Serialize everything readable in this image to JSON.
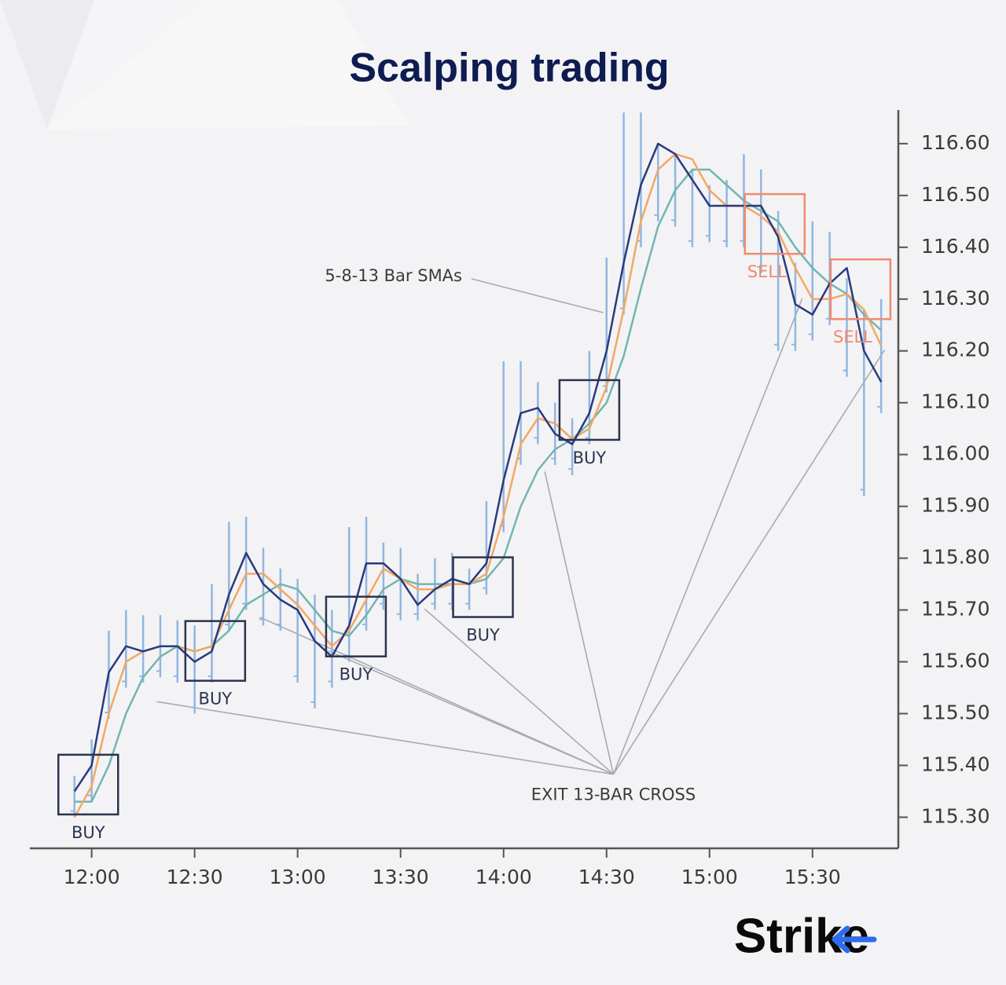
{
  "chart_data": {
    "type": "line",
    "title": "Scalping trading",
    "logo": "Strike",
    "x": [
      "11:55",
      "12:00",
      "12:05",
      "12:10",
      "12:15",
      "12:20",
      "12:25",
      "12:30",
      "12:35",
      "12:40",
      "12:45",
      "12:50",
      "12:55",
      "13:00",
      "13:05",
      "13:10",
      "13:15",
      "13:20",
      "13:25",
      "13:30",
      "13:35",
      "13:40",
      "13:45",
      "13:50",
      "13:55",
      "14:00",
      "14:05",
      "14:10",
      "14:15",
      "14:20",
      "14:25",
      "14:30",
      "14:35",
      "14:40",
      "14:45",
      "14:50",
      "14:55",
      "15:00",
      "15:05",
      "15:10",
      "15:15",
      "15:20",
      "15:25",
      "15:30",
      "15:35",
      "15:40",
      "15:45",
      "15:50"
    ],
    "bar_color": "#92b6e0",
    "highs": [
      115.38,
      115.45,
      115.66,
      115.7,
      115.69,
      115.69,
      115.68,
      115.67,
      115.75,
      115.87,
      115.88,
      115.82,
      115.78,
      115.76,
      115.73,
      115.7,
      115.86,
      115.88,
      115.83,
      115.82,
      115.77,
      115.8,
      115.81,
      115.78,
      115.91,
      116.18,
      116.18,
      116.14,
      116.1,
      116.07,
      116.2,
      116.38,
      116.66,
      116.66,
      116.6,
      116.58,
      116.55,
      116.52,
      116.53,
      116.58,
      116.55,
      116.47,
      116.37,
      116.45,
      116.43,
      116.34,
      116.28,
      116.3
    ],
    "lows": [
      115.3,
      115.33,
      115.49,
      115.55,
      115.56,
      115.57,
      115.56,
      115.5,
      115.56,
      115.66,
      115.7,
      115.67,
      115.66,
      115.56,
      115.51,
      115.55,
      115.6,
      115.66,
      115.7,
      115.68,
      115.68,
      115.7,
      115.7,
      115.7,
      115.73,
      115.85,
      115.98,
      116.02,
      115.98,
      115.96,
      116.02,
      116.12,
      116.27,
      116.4,
      116.45,
      116.44,
      116.4,
      116.41,
      116.4,
      116.4,
      116.35,
      116.2,
      116.2,
      116.22,
      116.25,
      116.15,
      115.92,
      116.08
    ],
    "series": [
      {
        "color": "#2a3a7c",
        "values": [
          115.35,
          115.4,
          115.58,
          115.63,
          115.62,
          115.63,
          115.63,
          115.6,
          115.62,
          115.73,
          115.81,
          115.75,
          115.72,
          115.7,
          115.64,
          115.61,
          115.67,
          115.79,
          115.79,
          115.76,
          115.71,
          115.74,
          115.76,
          115.75,
          115.79,
          115.95,
          116.08,
          116.09,
          116.04,
          116.02,
          116.08,
          116.2,
          116.37,
          116.52,
          116.6,
          116.58,
          116.53,
          116.48,
          116.48,
          116.48,
          116.48,
          116.42,
          116.29,
          116.27,
          116.33,
          116.36,
          116.2,
          116.14
        ]
      },
      {
        "color": "#f4a763",
        "values": [
          115.3,
          115.36,
          115.5,
          115.6,
          115.62,
          115.63,
          115.63,
          115.62,
          115.63,
          115.7,
          115.77,
          115.77,
          115.74,
          115.71,
          115.67,
          115.63,
          115.66,
          115.72,
          115.78,
          115.76,
          115.74,
          115.74,
          115.75,
          115.75,
          115.77,
          115.88,
          116.02,
          116.07,
          116.06,
          116.03,
          116.05,
          116.13,
          116.28,
          116.45,
          116.55,
          116.58,
          116.57,
          116.51,
          116.48,
          116.48,
          116.46,
          116.43,
          116.36,
          116.3,
          116.3,
          116.31,
          116.28,
          116.21
        ]
      },
      {
        "color": "#72b5b1",
        "values": [
          115.33,
          115.33,
          115.4,
          115.5,
          115.57,
          115.61,
          115.63,
          115.62,
          115.63,
          115.66,
          115.71,
          115.73,
          115.75,
          115.74,
          115.7,
          115.66,
          115.65,
          115.69,
          115.74,
          115.76,
          115.75,
          115.75,
          115.75,
          115.75,
          115.76,
          115.8,
          115.9,
          115.97,
          116.01,
          116.03,
          116.06,
          116.1,
          116.19,
          116.32,
          116.44,
          116.51,
          116.55,
          116.55,
          116.52,
          116.49,
          116.47,
          116.45,
          116.4,
          116.36,
          116.33,
          116.31,
          116.27,
          116.24
        ]
      }
    ],
    "xlim": [
      "11:42",
      "15:55"
    ],
    "xticks": [
      "12:00",
      "12:30",
      "13:00",
      "13:30",
      "14:00",
      "14:30",
      "15:00",
      "15:30"
    ],
    "ylim": [
      115.24,
      116.665
    ],
    "yticks": [
      {
        "value": 115.3,
        "label": "115.30"
      },
      {
        "value": 115.4,
        "label": "115.40"
      },
      {
        "value": 115.5,
        "label": "115.50"
      },
      {
        "value": 115.6,
        "label": "115.60"
      },
      {
        "value": 115.7,
        "label": "115.70"
      },
      {
        "value": 115.8,
        "label": "115.80"
      },
      {
        "value": 115.9,
        "label": "115.90"
      },
      {
        "value": 116.0,
        "label": "116.00"
      },
      {
        "value": 116.1,
        "label": "116.10"
      },
      {
        "value": 116.2,
        "label": "116.20"
      },
      {
        "value": 116.3,
        "label": "116.30"
      },
      {
        "value": 116.4,
        "label": "116.40"
      },
      {
        "value": 116.5,
        "label": "116.50"
      },
      {
        "value": 116.6,
        "label": "116.60"
      }
    ],
    "signals": [
      {
        "label": "BUY",
        "color": "#2b3350",
        "x": "11:59",
        "y": 115.363
      },
      {
        "label": "BUY",
        "color": "#2b3350",
        "x": "12:36",
        "y": 115.621
      },
      {
        "label": "BUY",
        "color": "#2b3350",
        "x": "13:17",
        "y": 115.668
      },
      {
        "label": "BUY",
        "color": "#2b3350",
        "x": "13:54",
        "y": 115.744
      },
      {
        "label": "BUY",
        "color": "#2b3350",
        "x": "14:25",
        "y": 116.086
      },
      {
        "label": "SELL",
        "color": "#f08a70",
        "x": "15:19",
        "y": 116.445
      },
      {
        "label": "SELL",
        "color": "#f08a70",
        "x": "15:44",
        "y": 116.319
      }
    ],
    "sma_note": {
      "label": "5-8-13 Bar SMAs",
      "x": "14:29",
      "y": 116.274
    },
    "exit_note": {
      "label": "EXIT 13-BAR CROSS",
      "x": "14:32",
      "y": 115.383,
      "targets": [
        {
          "x": "12:19",
          "y": 115.523
        },
        {
          "x": "12:49",
          "y": 115.686
        },
        {
          "x": "13:09",
          "y": 115.621
        },
        {
          "x": "13:37",
          "y": 115.702
        },
        {
          "x": "14:12",
          "y": 115.967
        },
        {
          "x": "15:27",
          "y": 116.301
        },
        {
          "x": "15:51",
          "y": 116.202
        }
      ]
    }
  }
}
